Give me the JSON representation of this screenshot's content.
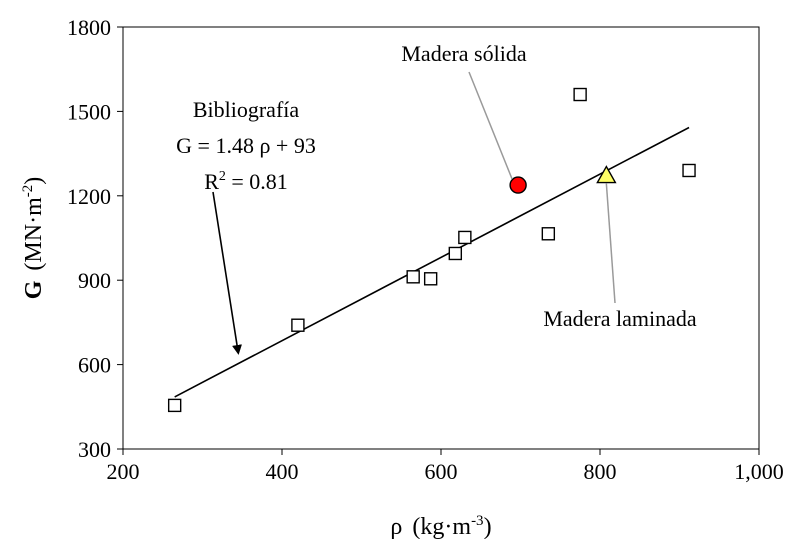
{
  "chart_data": {
    "type": "scatter",
    "xlim": [
      200,
      1000
    ],
    "ylim": [
      300,
      1800
    ],
    "x_ticks": [
      "200",
      "400",
      "600",
      "800",
      "1,000"
    ],
    "y_ticks": [
      "300",
      "600",
      "900",
      "1200",
      "1500",
      "1800"
    ],
    "xlabel": {
      "symbol": "ρ",
      "unit": "(kg·m",
      "exp": "-3",
      "close": ")"
    },
    "ylabel": {
      "symbol": "G",
      "unit": "(MN·m",
      "exp": "-2",
      "close": ")"
    },
    "grid": false,
    "series": [
      {
        "marker": "square-open",
        "color": "#000000",
        "points": [
          {
            "x": 265,
            "y": 455
          },
          {
            "x": 420,
            "y": 740
          },
          {
            "x": 565,
            "y": 912
          },
          {
            "x": 587,
            "y": 905
          },
          {
            "x": 618,
            "y": 995
          },
          {
            "x": 630,
            "y": 1052
          },
          {
            "x": 735,
            "y": 1065
          },
          {
            "x": 775,
            "y": 1560
          },
          {
            "x": 912,
            "y": 1290
          }
        ]
      },
      {
        "name": "Madera sólida",
        "marker": "circle",
        "color": "#ff0000",
        "points": [
          {
            "x": 697,
            "y": 1238
          }
        ]
      },
      {
        "name": "Madera laminada",
        "marker": "triangle",
        "color": "#ffff66",
        "points": [
          {
            "x": 808,
            "y": 1272
          }
        ]
      }
    ],
    "fit": {
      "slope": 1.48,
      "intercept": 93,
      "x_range": [
        265,
        912
      ],
      "label_title": "Bibliografía",
      "label_eq": "G = 1.48 ρ + 93",
      "label_r2_prefix": "R",
      "label_r2_exp": "2",
      "label_r2_value": " = 0.81",
      "arrow_target": {
        "x": 345,
        "y": 613
      }
    },
    "annotations": [
      {
        "text": "Madera sólida",
        "target": {
          "x": 697,
          "y": 1238
        }
      },
      {
        "text": "Madera laminada",
        "target": {
          "x": 808,
          "y": 1272
        }
      }
    ]
  }
}
